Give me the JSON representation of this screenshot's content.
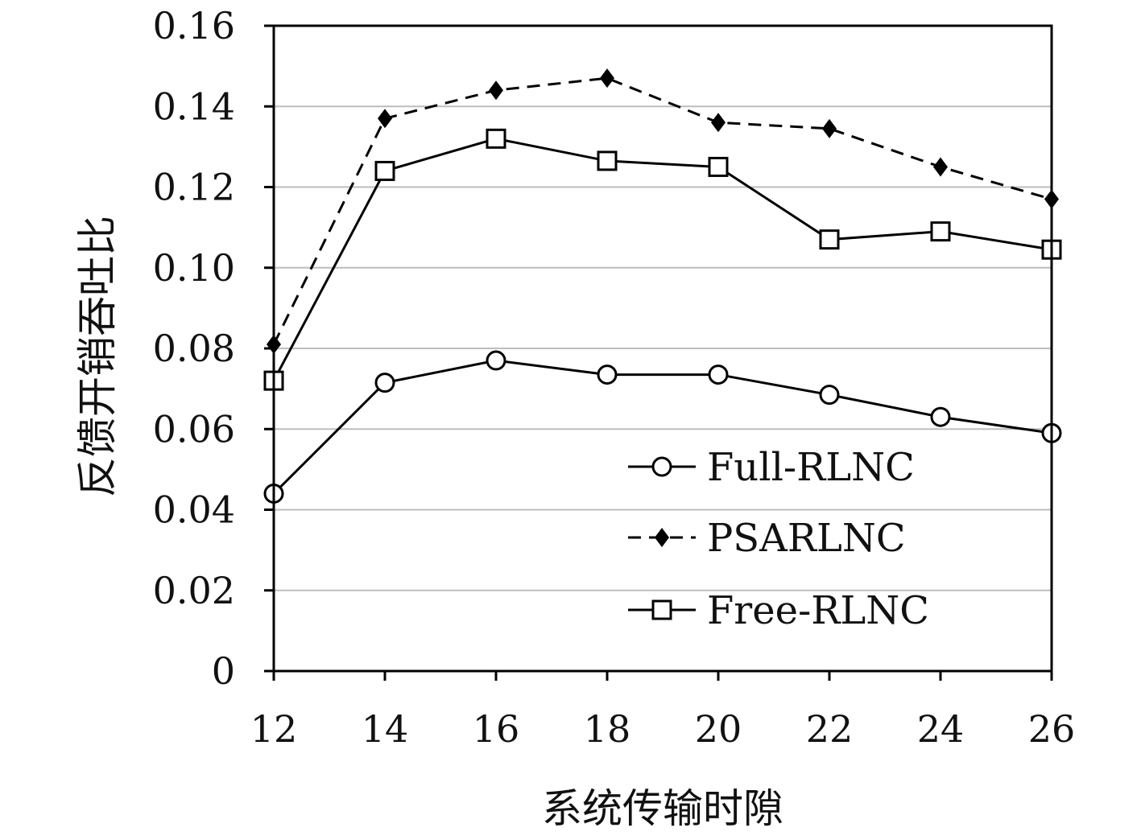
{
  "chart_data": {
    "type": "line",
    "title": "",
    "xlabel": "系统传输时隙",
    "ylabel": "反馈开销吞吐比",
    "x": [
      12,
      14,
      16,
      18,
      20,
      22,
      24,
      26
    ],
    "xlim": [
      12,
      26
    ],
    "ylim": [
      0,
      0.16
    ],
    "x_ticks": [
      "12",
      "14",
      "16",
      "18",
      "20",
      "22",
      "24",
      "26"
    ],
    "y_ticks": [
      "0",
      "0.02",
      "0.04",
      "0.06",
      "0.08",
      "0.10",
      "0.12",
      "0.14",
      "0.16"
    ],
    "grid": "horizontal",
    "legend_position": "lower-right",
    "series": [
      {
        "name": "Full-RLNC",
        "marker": "circle-open",
        "line": "solid",
        "color": "#000000",
        "values": [
          0.044,
          0.0715,
          0.077,
          0.0735,
          0.0735,
          0.0685,
          0.063,
          0.059
        ]
      },
      {
        "name": "PSARLNC",
        "marker": "diamond-filled",
        "line": "dashed",
        "color": "#000000",
        "values": [
          0.081,
          0.137,
          0.144,
          0.147,
          0.136,
          0.1345,
          0.125,
          0.117
        ]
      },
      {
        "name": "Free-RLNC",
        "marker": "square-open",
        "line": "solid",
        "color": "#000000",
        "values": [
          0.072,
          0.124,
          0.132,
          0.1265,
          0.125,
          0.107,
          0.109,
          0.1045
        ]
      }
    ]
  }
}
